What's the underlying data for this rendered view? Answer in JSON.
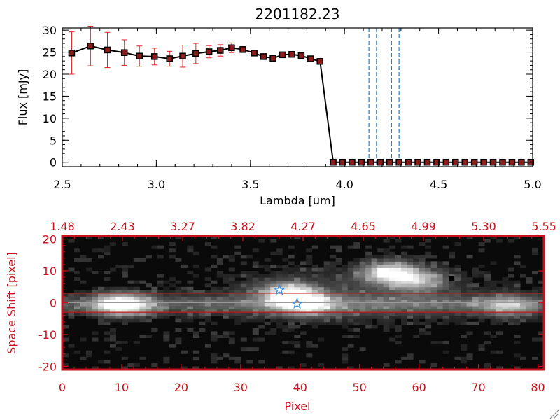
{
  "chart_data": [
    {
      "type": "line",
      "title": "2201182.23",
      "xlabel": "Lambda [um]",
      "ylabel": "Flux [mJy]",
      "xlim": [
        2.5,
        5.0
      ],
      "ylim": [
        -1,
        30.5
      ],
      "x_ticks": [
        "2.5",
        "3.0",
        "3.5",
        "4.0",
        "4.5",
        "5.0"
      ],
      "y_ticks": [
        "0",
        "5",
        "10",
        "15",
        "20",
        "25",
        "30"
      ],
      "colors": {
        "line": "#000000",
        "marker": "#8b1c1c",
        "errorbar": "#e02020",
        "dashed": "#1e7fd0"
      },
      "series": [
        {
          "x": [
            2.55,
            2.65,
            2.74,
            2.83,
            2.91,
            2.99,
            3.07,
            3.14,
            3.21,
            3.28,
            3.34,
            3.4,
            3.46,
            3.52,
            3.57,
            3.62,
            3.67,
            3.72,
            3.77,
            3.82,
            3.87,
            3.94,
            3.99,
            4.04,
            4.09,
            4.14,
            4.19,
            4.24,
            4.29,
            4.34,
            4.39,
            4.44,
            4.49,
            4.54,
            4.59,
            4.64,
            4.69,
            4.74,
            4.79,
            4.84,
            4.89,
            4.94,
            4.99
          ],
          "y": [
            24.8,
            26.4,
            25.5,
            24.9,
            24.1,
            24.0,
            23.5,
            24.1,
            24.7,
            25.1,
            25.4,
            26.0,
            25.6,
            24.8,
            24.0,
            23.6,
            24.4,
            24.5,
            24.2,
            23.5,
            22.9,
            0,
            0,
            0,
            0,
            0,
            0,
            0,
            0,
            0,
            0,
            0,
            0,
            0,
            0,
            0,
            0,
            0,
            0,
            0,
            0,
            0,
            0
          ],
          "yerr": [
            4.8,
            4.5,
            4.0,
            2.9,
            2.3,
            1.9,
            1.7,
            2.5,
            2.3,
            1.4,
            1.3,
            1.1,
            0.6,
            0.5,
            0.5,
            0.4,
            0.4,
            0.5,
            0.3,
            0.3,
            0.3,
            0,
            0,
            0,
            0,
            0,
            0,
            0,
            0,
            0,
            0,
            0,
            0,
            0,
            0,
            0,
            0,
            0,
            0,
            0,
            0,
            0,
            0
          ]
        }
      ],
      "vlines": [
        4.13,
        4.17,
        4.25,
        4.29
      ],
      "hline": 0
    },
    {
      "type": "heatmap",
      "xlabel": "Pixel",
      "ylabel": "Space Shift [pixel]",
      "xlim": [
        0,
        81
      ],
      "ylim": [
        -21,
        21
      ],
      "x_ticks": [
        "0",
        "10",
        "20",
        "30",
        "40",
        "50",
        "60",
        "70",
        "80"
      ],
      "y_ticks": [
        "-20",
        "-10",
        "0",
        "10",
        "20"
      ],
      "top_ticks": [
        "1.48",
        "2.43",
        "3.27",
        "3.82",
        "4.27",
        "4.65",
        "4.99",
        "5.30",
        "5.55"
      ],
      "aperture_lines": [
        3,
        -3
      ],
      "trace_line": 0,
      "source_blobs": [
        {
          "pixel": 10,
          "shift": -0.5,
          "peak": 1.0
        },
        {
          "pixel": 38,
          "shift": 3,
          "peak": 0.8
        },
        {
          "pixel": 41,
          "shift": -0.5,
          "peak": 0.7
        },
        {
          "pixel": 55,
          "shift": 9.5,
          "peak": 0.85
        },
        {
          "pixel": 60,
          "shift": 7,
          "peak": 0.55
        },
        {
          "pixel": 75,
          "shift": -1,
          "peak": 0.45
        }
      ],
      "markers": [
        {
          "pixel": 36.5,
          "shift": 4,
          "symbol": "star",
          "color": "#3a8fe0"
        },
        {
          "pixel": 39.5,
          "shift": -0.3,
          "symbol": "star",
          "color": "#3a8fe0"
        },
        {
          "pixel": 65.5,
          "shift": 7.5,
          "symbol": "square",
          "color": "#000000"
        }
      ]
    }
  ]
}
